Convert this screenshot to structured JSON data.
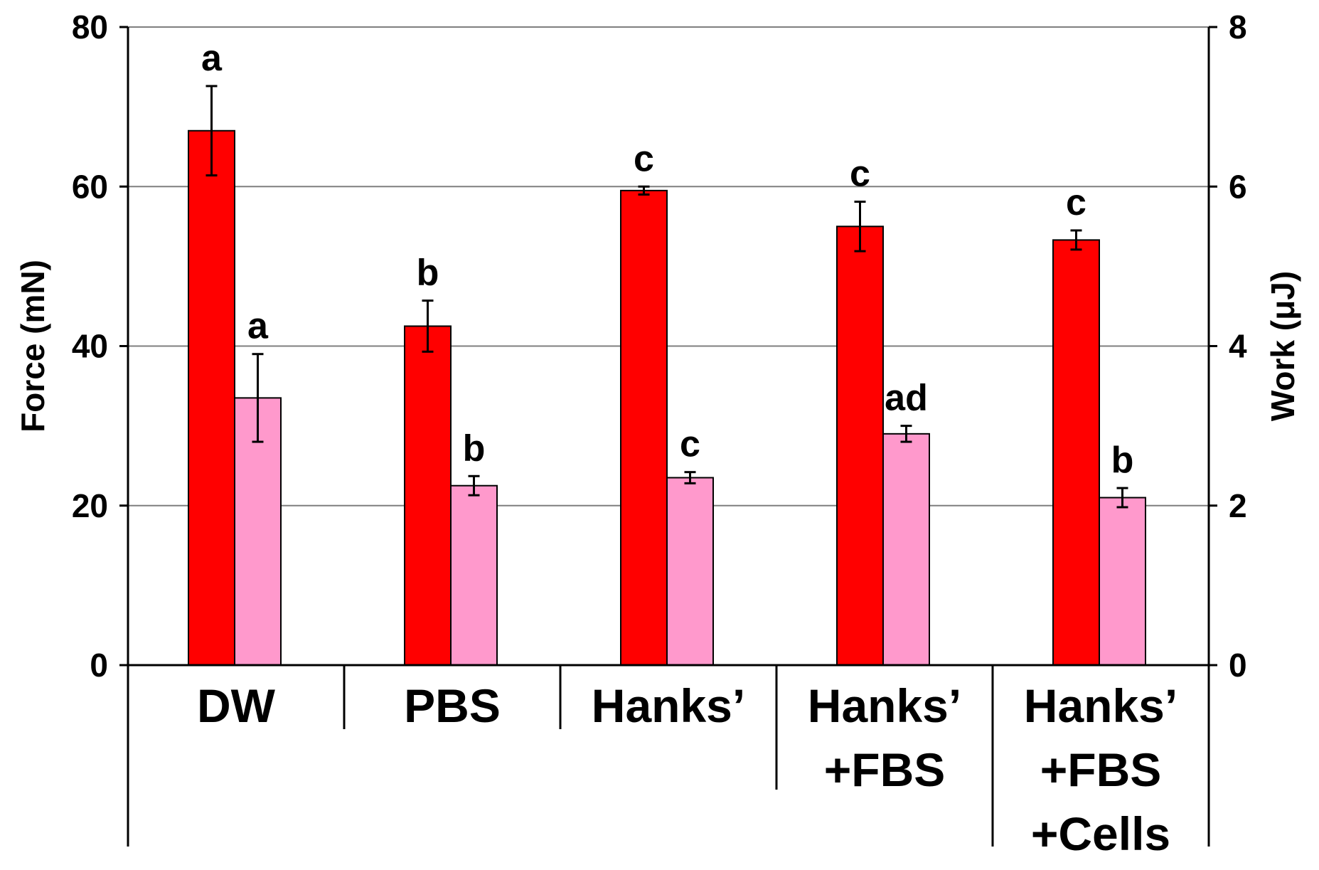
{
  "chart_data": {
    "type": "bar",
    "categories": [
      [
        "DW"
      ],
      [
        "PBS"
      ],
      [
        "Hanks’"
      ],
      [
        "Hanks’",
        "+FBS"
      ],
      [
        "Hanks’",
        "+FBS",
        "+Cells"
      ]
    ],
    "series": [
      {
        "axis": "left",
        "color": "#ff0000",
        "values": [
          67,
          42.5,
          59.5,
          55,
          53.3
        ],
        "errors": [
          5.6,
          3.2,
          0.5,
          3.1,
          1.2
        ],
        "letters": [
          "a",
          "b",
          "c",
          "c",
          "c"
        ]
      },
      {
        "axis": "right",
        "color": "#ff99cc",
        "values": [
          3.35,
          2.25,
          2.35,
          2.9,
          2.1
        ],
        "errors": [
          0.55,
          0.12,
          0.07,
          0.1,
          0.12
        ],
        "letters": [
          "a",
          "b",
          "c",
          "ad",
          "b"
        ]
      }
    ],
    "y_left": {
      "label": "Force (mN)",
      "min": 0,
      "max": 80,
      "ticks": [
        "0",
        "20",
        "40",
        "60",
        "80"
      ]
    },
    "y_right": {
      "label": "Work (μJ)",
      "min": 0,
      "max": 8,
      "ticks": [
        "0",
        "2",
        "4",
        "6",
        "8"
      ]
    },
    "grid": true,
    "legend": "none"
  }
}
